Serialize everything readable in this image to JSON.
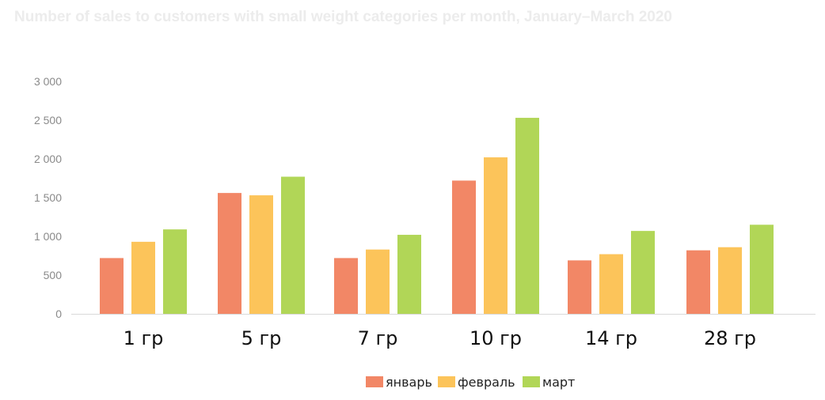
{
  "chart_data": {
    "type": "bar",
    "title": "Number of sales to customers with small weight categories per month, January–March 2020",
    "xlabel": "",
    "ylabel": "",
    "categories": [
      "1 гр",
      "5 гр",
      "7 гр",
      "10 гр",
      "14 гр",
      "28 гр"
    ],
    "series": [
      {
        "name": "январь",
        "color": "#f28766",
        "values": [
          720,
          1560,
          720,
          1720,
          690,
          820
        ]
      },
      {
        "name": "февраль",
        "color": "#fcc45a",
        "values": [
          930,
          1530,
          830,
          2020,
          770,
          860
        ]
      },
      {
        "name": "март",
        "color": "#b1d657",
        "values": [
          1090,
          1770,
          1020,
          2530,
          1070,
          1150
        ]
      }
    ],
    "yticks": [
      "0",
      "500",
      "1 000",
      "1 500",
      "2 000",
      "2 500",
      "3 000"
    ],
    "ylim": [
      0,
      3000
    ],
    "grid": false,
    "legend_position": "bottom"
  }
}
